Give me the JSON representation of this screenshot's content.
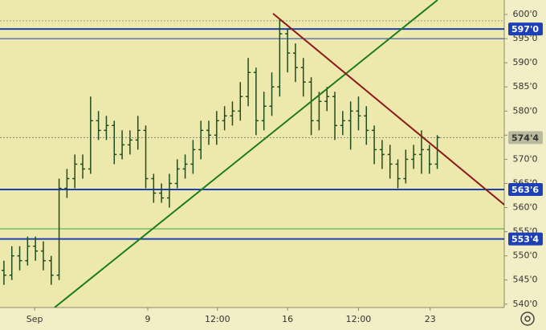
{
  "chart_data": {
    "type": "ohlc",
    "color": "#1f4d1f",
    "open": [
      547,
      546,
      550,
      549,
      552,
      551,
      549,
      546,
      564,
      566,
      569,
      568,
      578,
      576,
      577,
      571,
      573,
      574,
      576,
      566,
      563,
      562,
      565,
      568,
      569,
      572,
      576,
      575,
      578,
      579,
      580,
      583,
      588,
      578,
      581,
      585,
      596,
      592,
      589,
      586,
      578,
      582,
      583,
      577,
      578,
      580,
      579,
      576,
      572,
      571,
      569,
      566,
      570,
      571,
      572,
      569
    ],
    "high": [
      549,
      552,
      552,
      554,
      554,
      553,
      550,
      566,
      568,
      571,
      571,
      583,
      580,
      579,
      578,
      576,
      576,
      579,
      577,
      567,
      565,
      567,
      570,
      571,
      574,
      578,
      578,
      580,
      581,
      582,
      586,
      591,
      589,
      584,
      588,
      599,
      597,
      594,
      591,
      587,
      584,
      585,
      584,
      580,
      582,
      583,
      581,
      577,
      574,
      573,
      570,
      572,
      573,
      576,
      573,
      575
    ],
    "low": [
      544,
      545,
      547,
      548,
      549,
      547,
      544,
      545,
      562,
      564,
      566,
      567,
      574,
      574,
      569,
      570,
      571,
      572,
      564,
      561,
      561,
      560,
      564,
      566,
      567,
      570,
      573,
      573,
      576,
      577,
      578,
      581,
      575,
      576,
      579,
      583,
      588,
      586,
      583,
      575,
      576,
      580,
      574,
      575,
      572,
      576,
      573,
      569,
      568,
      566,
      564,
      565,
      568,
      567,
      567,
      568
    ],
    "close": [
      546,
      550,
      549,
      552,
      551,
      549,
      546,
      564,
      566,
      569,
      568,
      578,
      576,
      577,
      571,
      573,
      574,
      576,
      566,
      563,
      562,
      565,
      568,
      569,
      572,
      576,
      575,
      578,
      579,
      580,
      583,
      588,
      578,
      581,
      585,
      596,
      592,
      589,
      586,
      578,
      582,
      583,
      577,
      578,
      580,
      579,
      576,
      572,
      571,
      569,
      566,
      570,
      571,
      572,
      569,
      574.5
    ],
    "xlim": [
      -0.5,
      63.5
    ],
    "ylim": [
      539.3,
      603.0
    ],
    "xticks": [
      {
        "value": 3.9,
        "label": "Sep"
      },
      {
        "value": 18.25,
        "label": "9"
      },
      {
        "value": 27.1,
        "label": "12:00"
      },
      {
        "value": 36,
        "label": "16"
      },
      {
        "value": 45,
        "label": "12:00"
      },
      {
        "value": 54.1,
        "label": "23"
      }
    ],
    "yticks": [
      {
        "value": 600,
        "label": "600'0"
      },
      {
        "value": 595,
        "label": "595'0"
      },
      {
        "value": 590,
        "label": "590'0"
      },
      {
        "value": 585,
        "label": "585'0"
      },
      {
        "value": 580,
        "label": "580'0"
      },
      {
        "value": 575,
        "label": "575'0"
      },
      {
        "value": 570,
        "label": "570'0"
      },
      {
        "value": 565,
        "label": "565'0"
      },
      {
        "value": 560,
        "label": "560'0"
      },
      {
        "value": 555,
        "label": "555'0"
      },
      {
        "value": 550,
        "label": "550'0"
      },
      {
        "value": 545,
        "label": "545'0"
      },
      {
        "value": 540,
        "label": "540'0"
      }
    ],
    "levels": [
      {
        "value": 597,
        "label": "597'0",
        "color": "#1f3fb5"
      },
      {
        "value": 563.75,
        "label": "563'6",
        "color": "#1f3fb5"
      },
      {
        "value": 553.5,
        "label": "553'4",
        "color": "#1f3fb5"
      },
      {
        "value": 574.5,
        "label": "574'4",
        "color": "#b9b9a0"
      }
    ],
    "thin_lines": [
      {
        "value": 598.7,
        "color": "#9a9a80"
      },
      {
        "value": 595,
        "color": "#1f3fb5"
      },
      {
        "value": 555.6,
        "color": "#3aa83a"
      }
    ],
    "trendlines": [
      {
        "x": [
          6.43,
          55.04
        ],
        "y": [
          539.3,
          603.0
        ],
        "color": "#1e7a1e"
      },
      {
        "x": [
          34.15,
          63.5
        ],
        "y": [
          600.2,
          560.6
        ],
        "color": "#8b1a1a"
      }
    ]
  }
}
